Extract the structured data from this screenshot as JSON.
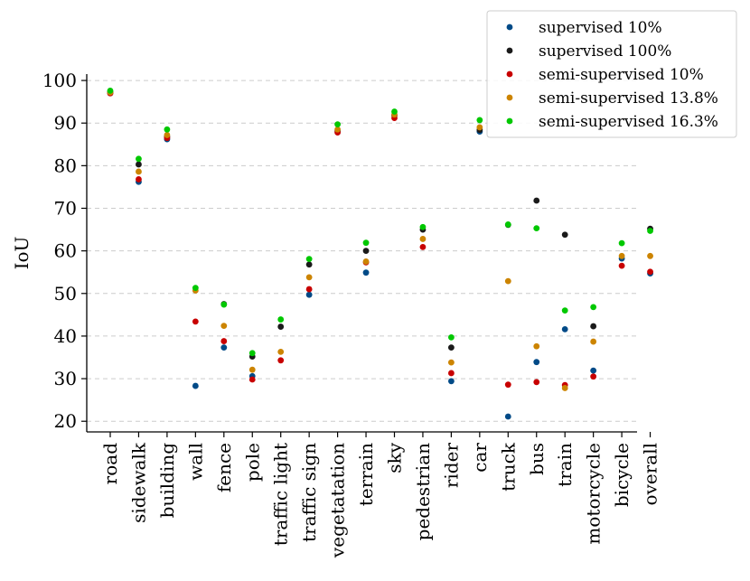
{
  "chart_data": {
    "type": "scatter",
    "ylabel": "IoU",
    "xlabel": "",
    "ylim": [
      17.5,
      101.5
    ],
    "yticks": [
      20,
      30,
      40,
      50,
      60,
      70,
      80,
      90,
      100
    ],
    "grid": "y-dashed",
    "legend_position": "top-right",
    "categories": [
      "road",
      "sidewalk",
      "building",
      "wall",
      "fence",
      "pole",
      "traffic light",
      "traffic sign",
      "vegetatation",
      "terrain",
      "sky",
      "pedestrian",
      "rider",
      "car",
      "truck",
      "bus",
      "train",
      "motorcycle",
      "bicycle",
      "overall"
    ],
    "series": [
      {
        "name": "supervised 10%",
        "color": "#004a87",
        "values": [
          97.0,
          76.2,
          86.2,
          28.3,
          37.3,
          30.6,
          null,
          49.7,
          null,
          54.9,
          null,
          null,
          29.4,
          88.0,
          21.1,
          33.9,
          41.6,
          31.9,
          58.2,
          54.7
        ]
      },
      {
        "name": "supervised 100%",
        "color": "#1a1a1a",
        "values": [
          97.3,
          80.3,
          86.8,
          null,
          47.5,
          35.2,
          42.2,
          56.8,
          88.1,
          60.0,
          91.8,
          65.0,
          37.3,
          88.4,
          66.1,
          71.8,
          63.8,
          42.3,
          null,
          65.2
        ]
      },
      {
        "name": "semi-supervised 10%",
        "color": "#c80000",
        "values": [
          97.0,
          76.8,
          86.5,
          43.4,
          38.8,
          29.8,
          34.3,
          51.0,
          87.8,
          57.3,
          91.2,
          60.9,
          31.3,
          null,
          28.6,
          29.2,
          28.5,
          30.5,
          56.5,
          55.1
        ]
      },
      {
        "name": "semi-supervised 13.8%",
        "color": "#cc8400",
        "values": [
          97.2,
          78.6,
          87.2,
          50.7,
          42.4,
          32.1,
          36.3,
          53.8,
          88.5,
          57.5,
          92.0,
          62.8,
          33.8,
          89.0,
          52.9,
          37.6,
          27.8,
          38.7,
          58.8,
          58.8
        ]
      },
      {
        "name": "semi-supervised 16.3%",
        "color": "#00c800",
        "values": [
          97.6,
          81.6,
          88.5,
          51.3,
          47.4,
          36.0,
          43.9,
          58.1,
          89.7,
          61.9,
          92.7,
          65.6,
          39.7,
          90.7,
          66.2,
          65.3,
          46.0,
          46.8,
          61.8,
          64.7
        ]
      }
    ]
  }
}
